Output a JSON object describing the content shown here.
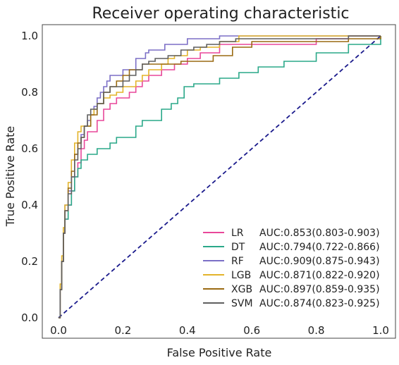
{
  "chart_data": {
    "type": "line",
    "title": "Receiver operating characteristic",
    "xlabel": "False Positive Rate",
    "ylabel": "True Positive Rate",
    "xlim": [
      0.0,
      1.0
    ],
    "ylim": [
      0.0,
      1.0
    ],
    "xticks": [
      "0.0",
      "0.2",
      "0.4",
      "0.6",
      "0.8",
      "1.0"
    ],
    "yticks": [
      "0.0",
      "0.2",
      "0.4",
      "0.6",
      "0.8",
      "1.0"
    ],
    "grid": false,
    "legend_position": "lower-right",
    "diagonal": {
      "x": [
        0,
        1
      ],
      "y": [
        0,
        1
      ],
      "color": "#1a1a8c",
      "style": "dashed"
    },
    "series": [
      {
        "name": "LR",
        "auc_label": "AUC:0.853(0.803-0.903)",
        "color": "#e8479a",
        "x": [
          0,
          0.005,
          0.01,
          0.015,
          0.02,
          0.03,
          0.04,
          0.05,
          0.06,
          0.07,
          0.08,
          0.09,
          0.1,
          0.12,
          0.14,
          0.16,
          0.18,
          0.2,
          0.22,
          0.24,
          0.26,
          0.28,
          0.3,
          0.32,
          0.34,
          0.36,
          0.38,
          0.4,
          0.44,
          0.5,
          0.56,
          0.62,
          0.7,
          0.8,
          0.9,
          1.0
        ],
        "y": [
          0,
          0.1,
          0.2,
          0.3,
          0.35,
          0.4,
          0.45,
          0.5,
          0.55,
          0.6,
          0.63,
          0.66,
          0.66,
          0.7,
          0.74,
          0.76,
          0.78,
          0.78,
          0.8,
          0.82,
          0.84,
          0.86,
          0.86,
          0.88,
          0.88,
          0.9,
          0.9,
          0.92,
          0.94,
          0.97,
          0.97,
          0.97,
          0.97,
          0.99,
          1.0,
          1.0
        ]
      },
      {
        "name": "DT",
        "auc_label": "AUC:0.794(0.722-0.866)",
        "color": "#2aa889",
        "x": [
          0,
          0.005,
          0.01,
          0.015,
          0.02,
          0.03,
          0.04,
          0.05,
          0.06,
          0.07,
          0.09,
          0.1,
          0.12,
          0.14,
          0.16,
          0.18,
          0.22,
          0.24,
          0.26,
          0.3,
          0.32,
          0.35,
          0.37,
          0.39,
          0.42,
          0.45,
          0.5,
          0.56,
          0.62,
          0.7,
          0.8,
          0.9,
          1.0
        ],
        "y": [
          0,
          0.1,
          0.2,
          0.3,
          0.35,
          0.4,
          0.45,
          0.5,
          0.53,
          0.56,
          0.58,
          0.58,
          0.6,
          0.6,
          0.62,
          0.64,
          0.64,
          0.68,
          0.7,
          0.7,
          0.74,
          0.76,
          0.78,
          0.82,
          0.83,
          0.83,
          0.85,
          0.87,
          0.89,
          0.91,
          0.94,
          0.97,
          1.0
        ]
      },
      {
        "name": "RF",
        "auc_label": "AUC:0.909(0.875-0.943)",
        "color": "#7b6fc6",
        "x": [
          0,
          0.005,
          0.01,
          0.015,
          0.02,
          0.03,
          0.04,
          0.05,
          0.06,
          0.07,
          0.08,
          0.09,
          0.1,
          0.11,
          0.12,
          0.13,
          0.14,
          0.15,
          0.16,
          0.17,
          0.18,
          0.2,
          0.22,
          0.24,
          0.26,
          0.27,
          0.28,
          0.3,
          0.33,
          0.36,
          0.4,
          0.44,
          0.5,
          0.6,
          1.0
        ],
        "y": [
          0,
          0.1,
          0.2,
          0.3,
          0.4,
          0.45,
          0.5,
          0.58,
          0.62,
          0.65,
          0.68,
          0.7,
          0.72,
          0.75,
          0.78,
          0.8,
          0.82,
          0.84,
          0.86,
          0.86,
          0.86,
          0.88,
          0.88,
          0.92,
          0.92,
          0.94,
          0.95,
          0.95,
          0.97,
          0.97,
          0.99,
          0.99,
          1.0,
          1.0,
          1.0
        ]
      },
      {
        "name": "LGB",
        "auc_label": "AUC:0.871(0.822-0.920)",
        "color": "#e3b42a",
        "x": [
          0,
          0.005,
          0.01,
          0.015,
          0.02,
          0.03,
          0.04,
          0.05,
          0.06,
          0.07,
          0.08,
          0.09,
          0.1,
          0.11,
          0.12,
          0.14,
          0.16,
          0.18,
          0.2,
          0.22,
          0.24,
          0.26,
          0.28,
          0.3,
          0.32,
          0.34,
          0.36,
          0.4,
          0.44,
          0.5,
          0.56,
          0.9,
          1.0
        ],
        "y": [
          0,
          0.12,
          0.22,
          0.32,
          0.4,
          0.48,
          0.56,
          0.62,
          0.66,
          0.68,
          0.68,
          0.68,
          0.72,
          0.74,
          0.76,
          0.78,
          0.79,
          0.8,
          0.82,
          0.82,
          0.84,
          0.86,
          0.88,
          0.88,
          0.9,
          0.92,
          0.93,
          0.95,
          0.96,
          0.98,
          1.0,
          1.0,
          1.0
        ]
      },
      {
        "name": "XGB",
        "auc_label": "AUC:0.897(0.859-0.935)",
        "color": "#9a6a12",
        "x": [
          0,
          0.005,
          0.01,
          0.015,
          0.02,
          0.03,
          0.04,
          0.05,
          0.06,
          0.07,
          0.08,
          0.1,
          0.12,
          0.14,
          0.16,
          0.18,
          0.2,
          0.22,
          0.24,
          0.26,
          0.28,
          0.3,
          0.34,
          0.38,
          0.42,
          0.48,
          0.54,
          0.6,
          0.7,
          0.8,
          0.9,
          1.0
        ],
        "y": [
          0,
          0.1,
          0.2,
          0.3,
          0.38,
          0.46,
          0.52,
          0.58,
          0.62,
          0.64,
          0.68,
          0.72,
          0.76,
          0.8,
          0.82,
          0.84,
          0.86,
          0.88,
          0.88,
          0.9,
          0.9,
          0.9,
          0.9,
          0.91,
          0.91,
          0.93,
          0.96,
          0.98,
          0.98,
          0.98,
          0.99,
          1.0
        ]
      },
      {
        "name": "SVM",
        "auc_label": "AUC:0.874(0.823-0.925)",
        "color": "#5f5f5f",
        "x": [
          0,
          0.005,
          0.01,
          0.015,
          0.02,
          0.03,
          0.04,
          0.05,
          0.06,
          0.07,
          0.08,
          0.09,
          0.1,
          0.12,
          0.14,
          0.16,
          0.18,
          0.2,
          0.22,
          0.24,
          0.26,
          0.28,
          0.3,
          0.34,
          0.38,
          0.42,
          0.46,
          0.5,
          0.55,
          0.6,
          0.7,
          0.8,
          0.9,
          1.0
        ],
        "y": [
          0,
          0.1,
          0.2,
          0.3,
          0.38,
          0.44,
          0.5,
          0.56,
          0.6,
          0.64,
          0.68,
          0.72,
          0.74,
          0.76,
          0.8,
          0.82,
          0.82,
          0.84,
          0.86,
          0.88,
          0.9,
          0.91,
          0.92,
          0.93,
          0.95,
          0.96,
          0.97,
          0.98,
          0.99,
          0.99,
          0.99,
          0.99,
          1.0,
          1.0
        ]
      }
    ]
  }
}
